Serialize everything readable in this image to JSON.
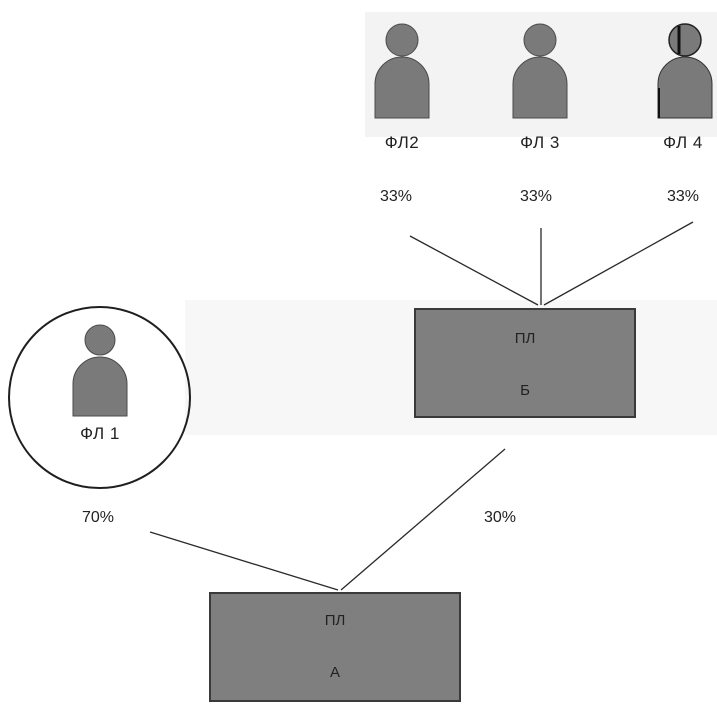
{
  "colors": {
    "person": "#7a7a7a",
    "box_fill": "#7f7f7f",
    "box_border": "#3a3a3a",
    "line": "#2a2a2a"
  },
  "individuals": {
    "fl1": "ФЛ 1",
    "fl2": "ФЛ2",
    "fl3": "ФЛ 3",
    "fl4": "ФЛ 4"
  },
  "entities": {
    "b": {
      "line1": "ПЛ",
      "line2": "Б"
    },
    "a": {
      "line1": "ПЛ",
      "line2": "А"
    }
  },
  "shares": {
    "fl2_to_b": "33%",
    "fl3_to_b": "33%",
    "fl4_to_b": "33%",
    "fl1_to_a": "70%",
    "b_to_a": "30%"
  },
  "icons": [
    "person-icon"
  ]
}
